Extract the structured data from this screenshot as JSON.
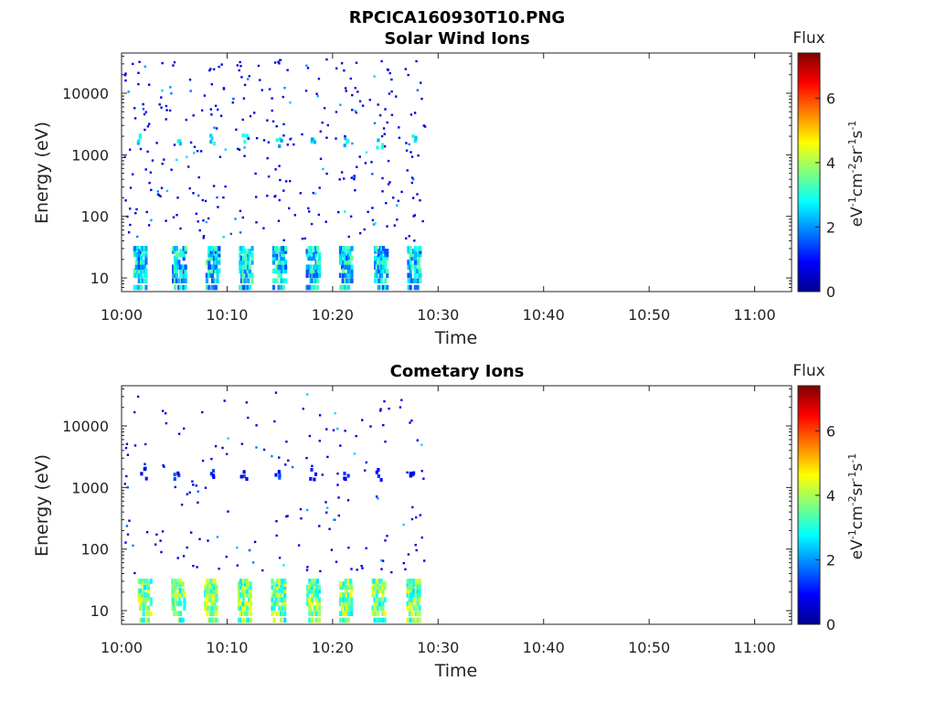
{
  "chart_data": {
    "type": "heatmap",
    "suptitle": "RPCICA160930T10.PNG",
    "colormap": "jet",
    "colorbar": {
      "title": "Flux",
      "label": "eV-1cm-2sr-1s-1",
      "range": [
        0,
        7.4
      ],
      "ticks": [
        "0",
        "2",
        "4",
        "6"
      ]
    },
    "x_ticks": [
      "10:00",
      "10:10",
      "10:20",
      "10:30",
      "10:40",
      "10:50",
      "11:00"
    ],
    "x_range_minutes": [
      0,
      63.5
    ],
    "y_ticks": [
      "10",
      "100",
      "1000",
      "10000"
    ],
    "y_range_eV": [
      6,
      45000
    ],
    "y_scale": "log",
    "panels": [
      {
        "title": "Solar Wind Ions",
        "xlabel": "Time",
        "ylabel": "Energy (eV)",
        "burst_minutes": [
          1.6,
          5.3,
          8.5,
          11.6,
          14.8,
          18.0,
          21.1,
          24.4,
          27.6
        ],
        "low_energy_flux": 2.5,
        "mid_band_energy_eV": 1600,
        "mid_band_flux": 2.6,
        "background_flux": 0.7,
        "data_end_minute": 28.8
      },
      {
        "title": "Cometary Ions",
        "xlabel": "Time",
        "ylabel": "Energy (eV)",
        "burst_minutes": [
          2.0,
          5.2,
          8.3,
          11.5,
          14.7,
          18.0,
          21.1,
          24.2,
          27.5
        ],
        "low_energy_flux": 3.6,
        "mid_band_energy_eV": 1600,
        "mid_band_flux": 1.0,
        "background_flux": 0.7,
        "data_end_minute": 28.6
      }
    ]
  }
}
